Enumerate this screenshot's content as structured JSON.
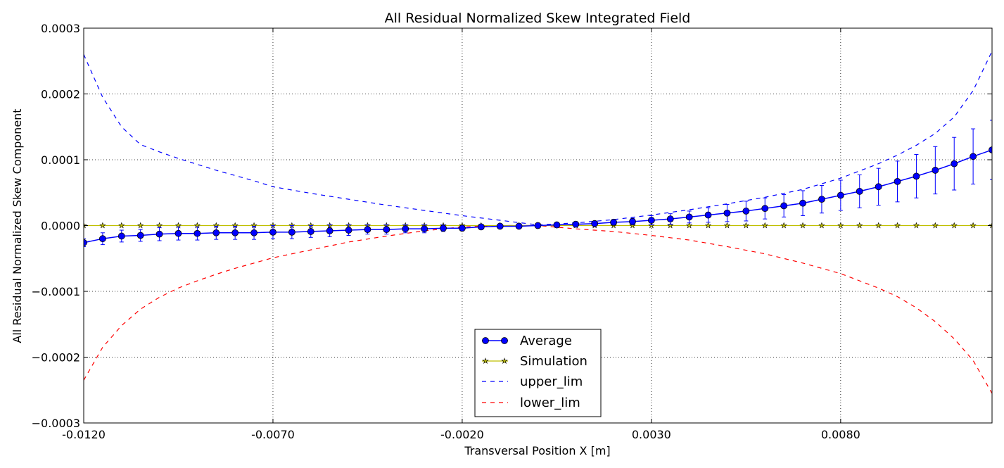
{
  "chart_data": {
    "type": "line",
    "title": "All Residual Normalized Skew Integrated Field",
    "xlabel": "Transversal Position X [m]",
    "ylabel": "All Residual Normalized Skew Component",
    "xlim": [
      -0.012,
      0.012
    ],
    "ylim": [
      -0.0003,
      0.0003
    ],
    "xticks": [
      -0.012,
      -0.007,
      -0.002,
      0.003,
      0.008
    ],
    "xtick_labels": [
      "-0.0120",
      "-0.0070",
      "-0.0020",
      "0.0030",
      "0.0080"
    ],
    "yticks": [
      0.0003,
      0.0002,
      0.0001,
      0.0,
      -0.0001,
      -0.0002,
      -0.0003
    ],
    "ytick_labels": [
      "0.0003",
      "0.0002",
      "0.0001",
      "0.0000",
      "−0.0001",
      "−0.0002",
      "−0.0003"
    ],
    "grid": true,
    "legend_position": "lower-center",
    "x": [
      -0.012,
      -0.0115,
      -0.011,
      -0.0105,
      -0.01,
      -0.0095,
      -0.009,
      -0.0085,
      -0.008,
      -0.0075,
      -0.007,
      -0.0065,
      -0.006,
      -0.0055,
      -0.005,
      -0.0045,
      -0.004,
      -0.0035,
      -0.003,
      -0.0025,
      -0.002,
      -0.0015,
      -0.001,
      -0.0005,
      0.0,
      0.0005,
      0.001,
      0.0015,
      0.002,
      0.0025,
      0.003,
      0.0035,
      0.004,
      0.0045,
      0.005,
      0.0055,
      0.006,
      0.0065,
      0.007,
      0.0075,
      0.008,
      0.0085,
      0.009,
      0.0095,
      0.01,
      0.0105,
      0.011,
      0.0115,
      0.012
    ],
    "series": [
      {
        "name": "Average",
        "color": "#0000ff",
        "marker": "circle",
        "values": [
          -2.6e-05,
          -2e-05,
          -1.6e-05,
          -1.5e-05,
          -1.3e-05,
          -1.2e-05,
          -1.2e-05,
          -1.1e-05,
          -1.1e-05,
          -1.1e-05,
          -1e-05,
          -1e-05,
          -9e-06,
          -8e-06,
          -7e-06,
          -6e-06,
          -6e-06,
          -5e-06,
          -5e-06,
          -4e-06,
          -4e-06,
          -2e-06,
          -1e-06,
          -1e-06,
          0.0,
          1e-06,
          2e-06,
          3e-06,
          5e-06,
          6e-06,
          8e-06,
          1e-05,
          1.3e-05,
          1.6e-05,
          1.9e-05,
          2.2e-05,
          2.6e-05,
          3e-05,
          3.4e-05,
          4e-05,
          4.6e-05,
          5.2e-05,
          5.9e-05,
          6.7e-05,
          7.5e-05,
          8.4e-05,
          9.4e-05,
          0.000105,
          0.000115
        ],
        "errors": [
          6e-06,
          9e-06,
          9e-06,
          9e-06,
          1e-05,
          1e-05,
          1e-05,
          1e-05,
          1e-05,
          1e-05,
          1e-05,
          1e-05,
          9e-06,
          9e-06,
          8e-06,
          7e-06,
          7e-06,
          6e-06,
          6e-06,
          5e-06,
          4e-06,
          3e-06,
          2e-06,
          2e-06,
          1e-06,
          2e-06,
          3e-06,
          3e-06,
          4e-06,
          5e-06,
          7e-06,
          8e-06,
          9e-06,
          1.1e-05,
          1.3e-05,
          1.5e-05,
          1.6e-05,
          1.7e-05,
          1.9e-05,
          2.1e-05,
          2.3e-05,
          2.5e-05,
          2.8e-05,
          3.1e-05,
          3.3e-05,
          3.6e-05,
          4e-05,
          4.2e-05,
          4.5e-05
        ]
      },
      {
        "name": "Simulation",
        "color": "#bfbf00",
        "marker": "star",
        "values": [
          0.0,
          0.0,
          0.0,
          0.0,
          0.0,
          0.0,
          0.0,
          0.0,
          0.0,
          0.0,
          0.0,
          0.0,
          0.0,
          0.0,
          0.0,
          0.0,
          0.0,
          0.0,
          0.0,
          0.0,
          0.0,
          0.0,
          0.0,
          0.0,
          0.0,
          0.0,
          0.0,
          0.0,
          0.0,
          0.0,
          0.0,
          0.0,
          0.0,
          0.0,
          0.0,
          0.0,
          0.0,
          0.0,
          0.0,
          0.0,
          0.0,
          0.0,
          0.0,
          0.0,
          0.0,
          0.0,
          0.0,
          0.0,
          0.0
        ]
      },
      {
        "name": "upper_lim",
        "color": "#0000ff",
        "style": "dashed",
        "x": [
          -0.012,
          -0.0115,
          -0.011,
          -0.0105,
          -0.01,
          -0.0095,
          -0.009,
          -0.0085,
          -0.008,
          -0.0075,
          -0.007,
          -0.006,
          -0.005,
          -0.004,
          -0.003,
          -0.002,
          -0.001,
          0.0,
          0.001,
          0.002,
          0.003,
          0.004,
          0.005,
          0.006,
          0.007,
          0.008,
          0.009,
          0.0095,
          0.01,
          0.0105,
          0.011,
          0.0115,
          0.012
        ],
        "values": [
          0.00026,
          0.000195,
          0.00015,
          0.000123,
          0.000112,
          0.000102,
          9.3e-05,
          8.4e-05,
          7.6e-05,
          6.8e-05,
          5.9e-05,
          4.9e-05,
          4e-05,
          3.1e-05,
          2.3e-05,
          1.5e-05,
          8e-06,
          1e-06,
          4e-06,
          9e-06,
          1.6e-05,
          2.4e-05,
          3.3e-05,
          4.3e-05,
          5.5e-05,
          7.2e-05,
          9.4e-05,
          0.000107,
          0.000122,
          0.00014,
          0.000165,
          0.000205,
          0.000265
        ]
      },
      {
        "name": "lower_lim",
        "color": "#ff0000",
        "style": "dashed",
        "x": [
          -0.012,
          -0.0115,
          -0.011,
          -0.0105,
          -0.01,
          -0.0095,
          -0.009,
          -0.0085,
          -0.008,
          -0.0075,
          -0.007,
          -0.006,
          -0.005,
          -0.004,
          -0.003,
          -0.002,
          -0.001,
          0.0,
          0.001,
          0.002,
          0.003,
          0.004,
          0.005,
          0.006,
          0.007,
          0.008,
          0.009,
          0.0095,
          0.01,
          0.0105,
          0.011,
          0.0115,
          0.012
        ],
        "values": [
          -0.000235,
          -0.000185,
          -0.000152,
          -0.000127,
          -0.000109,
          -9.5e-05,
          -8.4e-05,
          -7.4e-05,
          -6.5e-05,
          -5.7e-05,
          -4.9e-05,
          -3.7e-05,
          -2.5e-05,
          -1.6e-05,
          -8e-06,
          -2e-06,
          0.0,
          0.0,
          -5e-06,
          -9e-06,
          -1.5e-05,
          -2.2e-05,
          -3.2e-05,
          -4.3e-05,
          -5.7e-05,
          -7.3e-05,
          -9.5e-05,
          -0.000108,
          -0.000125,
          -0.000146,
          -0.000172,
          -0.000205,
          -0.000255
        ]
      }
    ]
  }
}
